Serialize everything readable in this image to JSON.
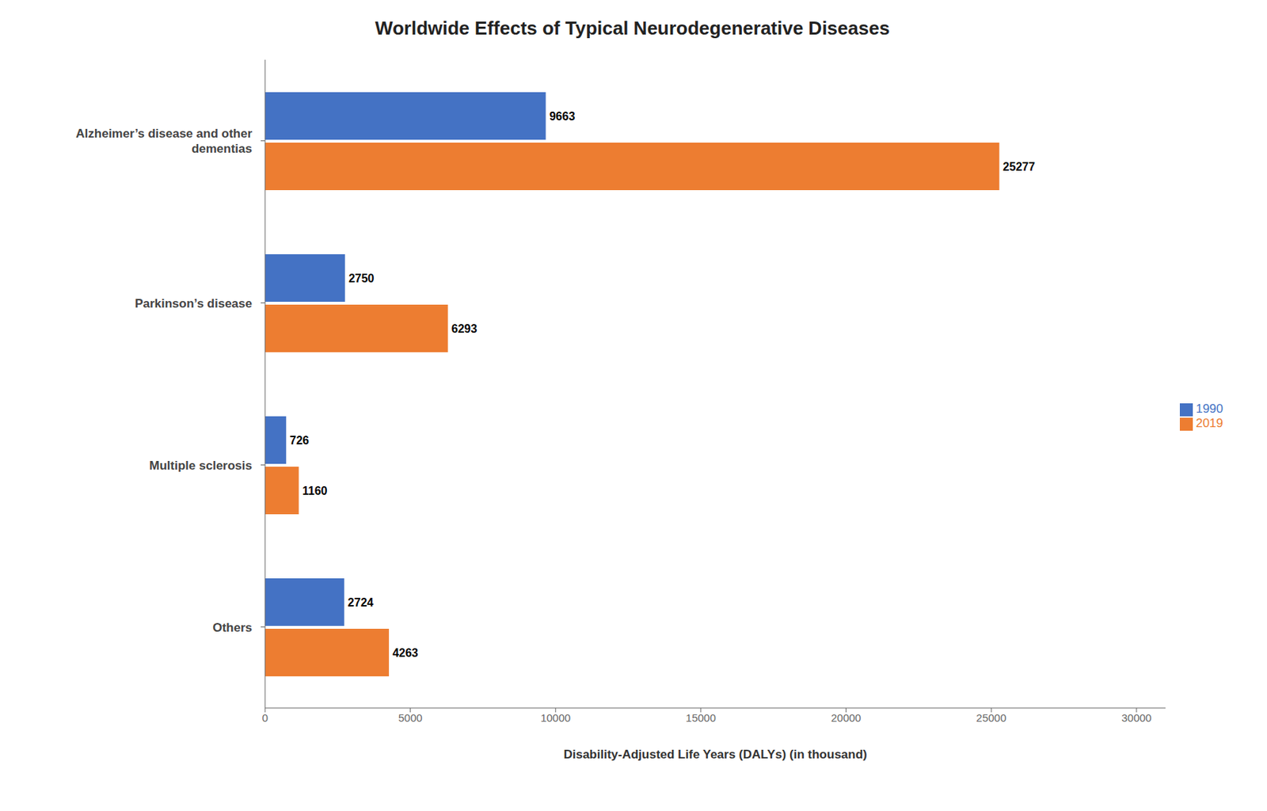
{
  "chart_data": {
    "type": "bar",
    "orientation": "horizontal",
    "title": "Worldwide Effects of Typical Neurodegenerative Diseases",
    "categories": [
      "Alzheimer’s disease and other\ndementias",
      "Parkinson’s disease",
      "Multiple sclerosis",
      "Others"
    ],
    "series": [
      {
        "name": "1990",
        "color": "#4472C4",
        "values": [
          9663,
          2750,
          726,
          2724
        ]
      },
      {
        "name": "2019",
        "color": "#ED7D31",
        "values": [
          25277,
          6293,
          1160,
          4263
        ]
      }
    ],
    "xlabel": "Disability-Adjusted Life Years (DALYs) (in thousand)",
    "xlim": [
      0,
      31000
    ],
    "xticks": [
      0,
      5000,
      10000,
      15000,
      20000,
      25000,
      30000
    ],
    "grid": false,
    "legend": "right",
    "data_labels": true
  }
}
